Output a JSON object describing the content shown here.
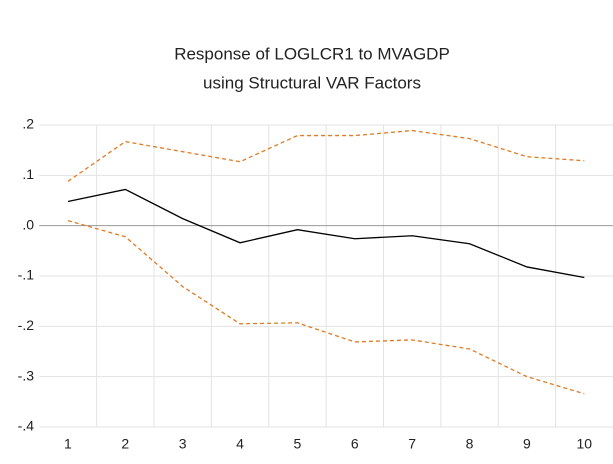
{
  "chart_data": {
    "type": "line",
    "title": "Response of LOGLCR1 to MVAGDP",
    "subtitle": "using Structural VAR Factors",
    "categories": [
      "1",
      "2",
      "3",
      "4",
      "5",
      "6",
      "7",
      "8",
      "9",
      "10"
    ],
    "series": [
      {
        "color": "#000000",
        "style": "solid",
        "values": [
          0.048,
          0.072,
          0.014,
          -0.034,
          -0.008,
          -0.026,
          -0.02,
          -0.036,
          -0.082,
          -0.103
        ]
      },
      {
        "color": "#e07b24",
        "style": "dashed",
        "values": [
          0.088,
          0.167,
          0.147,
          0.127,
          0.179,
          0.179,
          0.189,
          0.173,
          0.137,
          0.129
        ]
      },
      {
        "color": "#e07b24",
        "style": "dashed",
        "values": [
          0.01,
          -0.022,
          -0.121,
          -0.195,
          -0.193,
          -0.231,
          -0.227,
          -0.245,
          -0.3,
          -0.334
        ]
      }
    ],
    "ylim": [
      -0.4,
      0.2
    ],
    "yticks": [
      {
        "value": 0.2,
        "label": ".2"
      },
      {
        "value": 0.1,
        "label": ".1"
      },
      {
        "value": 0,
        "label": ".0"
      },
      {
        "value": -0.1,
        "label": "-.1"
      },
      {
        "value": -0.2,
        "label": "-.2"
      },
      {
        "value": -0.3,
        "label": "-.3"
      },
      {
        "value": -0.4,
        "label": "-.4"
      }
    ],
    "grid": true
  }
}
